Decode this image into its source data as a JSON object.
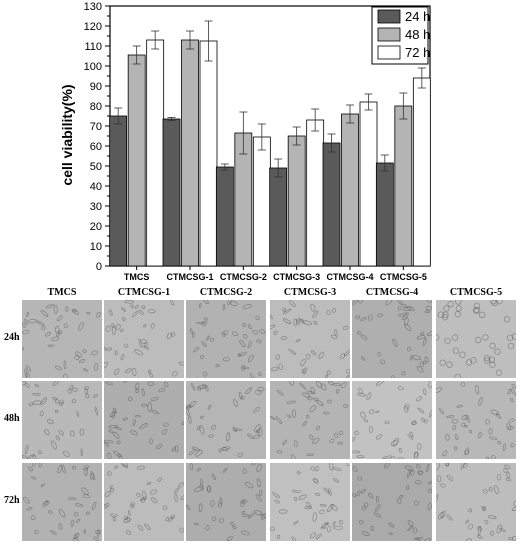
{
  "chart_data": {
    "type": "bar",
    "categories": [
      "TMCS",
      "CTMCSG-1",
      "CTMCSG-2",
      "CTMCSG-3",
      "CTMCSG-4",
      "CTMCSG-5"
    ],
    "series": [
      {
        "name": "24 h",
        "color": "#5a5a5a",
        "values": [
          75,
          73.5,
          49.5,
          49,
          61.5,
          51.5
        ],
        "errors": [
          4,
          0.8,
          1.5,
          4.5,
          4.5,
          4
        ]
      },
      {
        "name": "48 h",
        "color": "#b4b4b4",
        "values": [
          105.5,
          113,
          66.5,
          65,
          76,
          80
        ],
        "errors": [
          4.5,
          4.5,
          10.5,
          4.5,
          4.5,
          6.5
        ]
      },
      {
        "name": "72 h",
        "color": "#ffffff",
        "values": [
          113,
          112.5,
          64.5,
          73,
          82,
          94
        ],
        "errors": [
          4.5,
          10,
          6.5,
          5.5,
          4,
          5
        ]
      }
    ],
    "ylabel": "cell viability(%)",
    "xlabel": "",
    "ylim": [
      0,
      130
    ],
    "yticks": [
      0,
      10,
      20,
      30,
      40,
      50,
      60,
      70,
      80,
      90,
      100,
      110,
      120,
      130
    ],
    "grid": false,
    "legend": "top-right"
  },
  "micrographs": {
    "columns": [
      "TMCS",
      "CTMCSG-1",
      "CTMCSG-2",
      "CTMCSG-3",
      "CTMCSG-4",
      "CTMCSG-5"
    ],
    "rows": [
      "24h",
      "48h",
      "72h"
    ]
  }
}
